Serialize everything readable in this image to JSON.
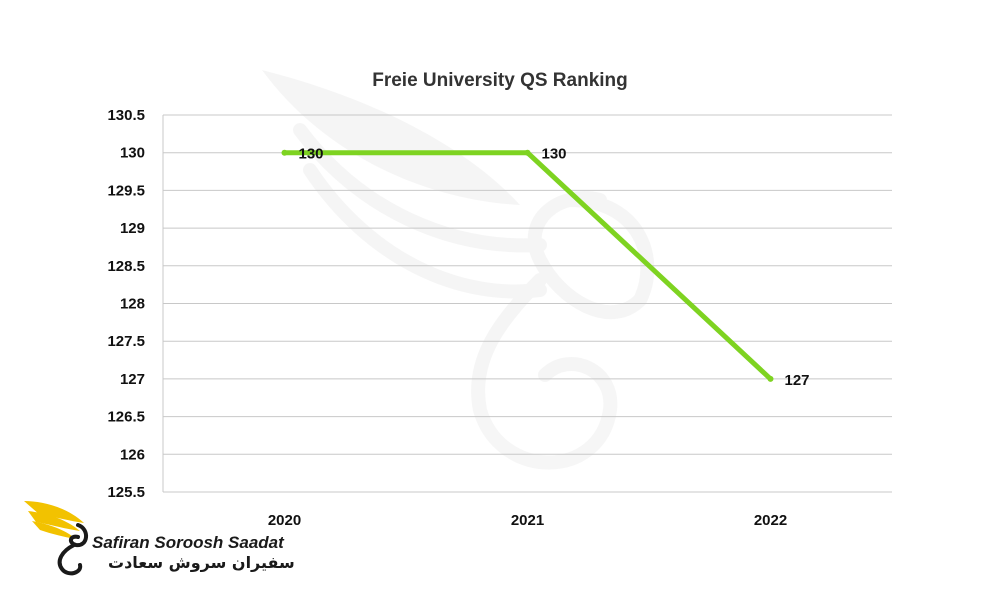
{
  "chart_data": {
    "type": "line",
    "title": "Freie University QS Ranking",
    "categories": [
      "2020",
      "2021",
      "2022"
    ],
    "values": [
      130,
      130,
      127
    ],
    "data_labels": [
      "130",
      "130",
      "127"
    ],
    "ylim": [
      125.5,
      130.5
    ],
    "y_ticks": [
      "130.5",
      "130",
      "129.5",
      "129",
      "128.5",
      "128",
      "127.5",
      "127",
      "126.5",
      "126",
      "125.5"
    ],
    "grid": true,
    "legend": "none",
    "line_color": "#7ed321"
  },
  "branding": {
    "name_en": "Safiran Soroosh Saadat",
    "name_fa": "سفیران سروش سعادت",
    "logo_color": "#f2c200"
  }
}
